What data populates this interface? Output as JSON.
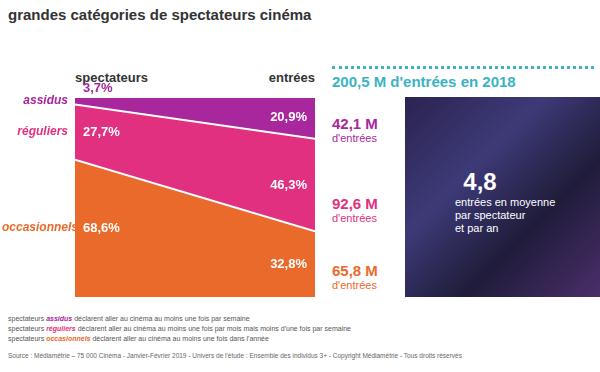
{
  "header": {
    "title": "grandes catégories de spectateurs cinéma"
  },
  "chart_data": {
    "type": "area",
    "stacked": true,
    "data_labels": true,
    "tick_labels": false,
    "grid": false,
    "categories": [
      "spectateurs",
      "entrées"
    ],
    "ylim": [
      0,
      100
    ],
    "series": [
      {
        "name": "occasionnels",
        "color": "#ea6a2c",
        "values": [
          68.6,
          32.8
        ],
        "value_labels": [
          "68,6%",
          "32,8%"
        ]
      },
      {
        "name": "réguliers",
        "color": "#e0307f",
        "values": [
          27.7,
          46.3
        ],
        "value_labels": [
          "27,7%",
          "46,3%"
        ]
      },
      {
        "name": "assidus",
        "color": "#a8279d",
        "values": [
          3.7,
          20.9
        ],
        "value_labels": [
          "3,7%",
          "20,9%"
        ]
      }
    ]
  },
  "panel": {
    "title": "200,5 M d'entrées en 2018",
    "entries": [
      {
        "value": "42,1 M",
        "unit": "d'entrées"
      },
      {
        "value": "92,6 M",
        "unit": "d'entrées"
      },
      {
        "value": "65,8 M",
        "unit": "d'entrées"
      }
    ],
    "average": {
      "value": "4,8",
      "text": [
        "entrées en moyenne",
        "par spectateur",
        "et par an"
      ]
    }
  },
  "footnotes": [
    {
      "lead": "spectateurs",
      "key": "assidus",
      "rest": "déclarent aller au cinéma au moins une fois par semaine"
    },
    {
      "lead": "spectateurs",
      "key": "réguliers",
      "rest": "déclarent aller au cinéma au moins une fois par mois mais moins d'une fois par semaine"
    },
    {
      "lead": "spectateurs",
      "key": "occasionnels",
      "rest": "déclarent aller au cinéma au moins une fois dans l'année"
    }
  ],
  "source": "Source : Médiamétrie – 75 000 Cinéma - Janvier-Février 2019 - Univers de l'étude : Ensemble des individus 3+ - Copyright Médiamétrie - Tous droits réservés"
}
